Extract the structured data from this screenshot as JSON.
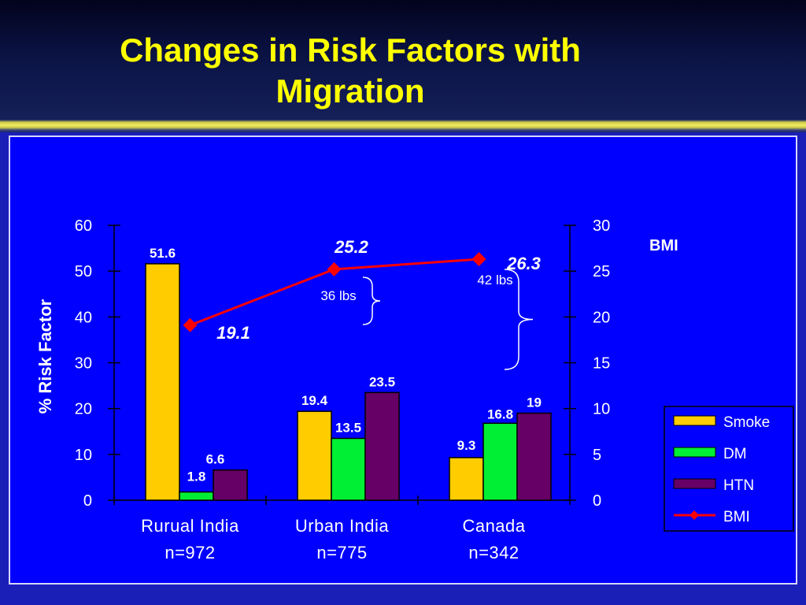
{
  "slide": {
    "title": "Changes in Risk Factors with Migration"
  },
  "colors": {
    "smoke": "#ffcc00",
    "dm": "#00ee33",
    "htn": "#660066",
    "bmi": "#ff0000",
    "background": "#0000ff"
  },
  "chart_data": {
    "type": "bar",
    "title": "Changes in Risk Factors with Migration",
    "ylabel": "% Risk Factor",
    "y2label": "BMI",
    "ylim": [
      0,
      60
    ],
    "y2lim": [
      0,
      30
    ],
    "yticks": [
      0,
      10,
      20,
      30,
      40,
      50,
      60
    ],
    "y2ticks": [
      0,
      5,
      10,
      15,
      20,
      25,
      30
    ],
    "categories": [
      "Rurual India",
      "Urban India",
      "Canada"
    ],
    "category_sublabels": [
      "n=972",
      "n=775",
      "n=342"
    ],
    "series": [
      {
        "name": "Smoke",
        "values": [
          51.6,
          19.4,
          9.3
        ],
        "labels": [
          "51.6",
          "19.4",
          "9.3"
        ]
      },
      {
        "name": "DM",
        "values": [
          1.8,
          13.5,
          16.8
        ],
        "labels": [
          "1.8",
          "13.5",
          "16.8"
        ]
      },
      {
        "name": "HTN",
        "values": [
          6.6,
          23.5,
          19
        ],
        "labels": [
          "6.6",
          "23.5",
          "19"
        ]
      }
    ],
    "line_series": {
      "name": "BMI",
      "axis": "secondary",
      "values": [
        19.1,
        25.2,
        26.3
      ],
      "labels": [
        "19.1",
        "25.2",
        "26.3"
      ]
    },
    "annotations": [
      {
        "text": "36 lbs"
      },
      {
        "text": "42 lbs"
      }
    ],
    "legend": [
      "Smoke",
      "DM",
      "HTN",
      "BMI"
    ],
    "legend_position": "right"
  }
}
